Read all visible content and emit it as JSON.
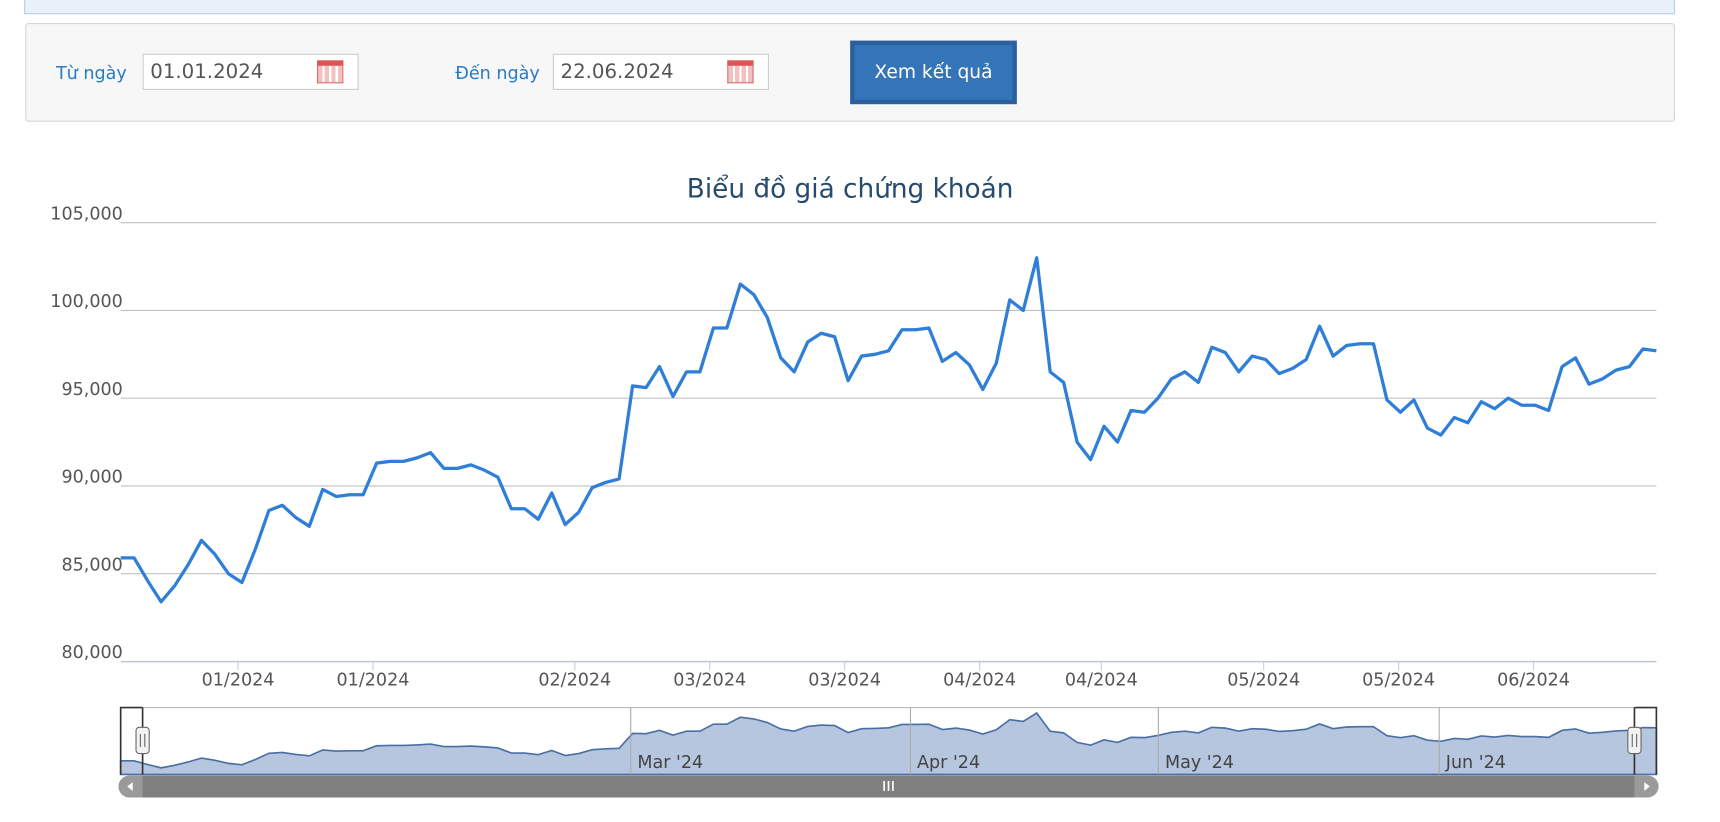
{
  "form": {
    "from_label": "Từ ngày",
    "from_value": "01.01.2024",
    "to_label": "Đến ngày",
    "to_value": "22.06.2024",
    "button": "Xem kết quả"
  },
  "chart_data": {
    "type": "line",
    "title": "Biểu đồ giá chứng khoán",
    "x_labels": [
      "01/2024",
      "01/2024",
      "02/2024",
      "03/2024",
      "03/2024",
      "04/2024",
      "04/2024",
      "05/2024",
      "05/2024",
      "06/2024"
    ],
    "navigator_labels": [
      "Mar '24",
      "Apr '24",
      "May '24",
      "Jun '24"
    ],
    "ylim": [
      80000,
      105000
    ],
    "yticks": [
      {
        "value": 80000,
        "label": "80,000"
      },
      {
        "value": 85000,
        "label": "85,000"
      },
      {
        "value": 90000,
        "label": "90,000"
      },
      {
        "value": 95000,
        "label": "95,000"
      },
      {
        "value": 100000,
        "label": "100,000"
      },
      {
        "value": 105000,
        "label": "105,000"
      }
    ],
    "grid": true,
    "series": [
      {
        "color": "#2f7ed8",
        "values": [
          85900,
          85900,
          84600,
          83400,
          84300,
          85500,
          86900,
          86100,
          85000,
          84500,
          86400,
          88600,
          88900,
          88200,
          87700,
          89800,
          89400,
          89500,
          89500,
          91300,
          91400,
          91400,
          91600,
          91900,
          91000,
          91000,
          91200,
          90900,
          90500,
          88700,
          88700,
          88100,
          89600,
          87800,
          88500,
          89900,
          90200,
          90400,
          95700,
          95600,
          96800,
          95100,
          96500,
          96500,
          99000,
          99000,
          101500,
          100900,
          99600,
          97300,
          96500,
          98200,
          98700,
          98500,
          96000,
          97400,
          97500,
          97700,
          98900,
          98900,
          99000,
          97100,
          97600,
          96900,
          95500,
          97000,
          100600,
          100000,
          103000,
          96500,
          95900,
          92500,
          91500,
          93400,
          92500,
          94300,
          94200,
          95000,
          96100,
          96500,
          95900,
          97900,
          97600,
          96500,
          97400,
          97200,
          96400,
          96700,
          97200,
          99100,
          97400,
          98000,
          98100,
          98100,
          94900,
          94200,
          94900,
          93300,
          92900,
          93900,
          93600,
          94800,
          94400,
          95000,
          94600,
          94600,
          94300,
          96800,
          97300,
          95800,
          96100,
          96600,
          96800,
          97800,
          97700
        ]
      }
    ]
  }
}
